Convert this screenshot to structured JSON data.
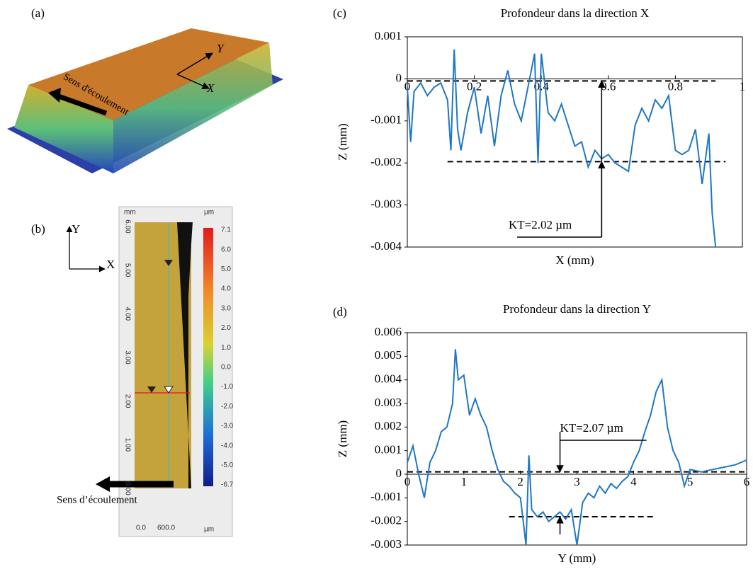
{
  "panel_labels": [
    "(a)",
    "(b)",
    "(c)",
    "(d)"
  ],
  "panel_a": {
    "axis_y": "Y",
    "axis_x": "X",
    "annotation": "Sens d'écoulement"
  },
  "panel_b": {
    "axis_y": "Y",
    "axis_x": "X",
    "unit_left": "mm",
    "unit_right": "µm",
    "unit_bottom": "µm",
    "y_ticks": [
      "6.00",
      "5.00",
      "4.00",
      "3.00",
      "2.00",
      "1.00",
      "0.00"
    ],
    "x_ticks": [
      "0.0",
      "600.0"
    ],
    "colorbar_ticks": [
      "7.1",
      "6.0",
      "5.0",
      "4.0",
      "3.0",
      "2.0",
      "1.0",
      "0.0",
      "-1.0",
      "-2.0",
      "-3.0",
      "-4.0",
      "-5.0",
      "-6.7"
    ],
    "annotation": "Sens d’écoulement"
  },
  "chart_data": [
    {
      "type": "line",
      "title": "Profondeur dans la direction X",
      "x_label": "X (mm)",
      "y_label": "Z (mm)",
      "color": "#1f77c4",
      "x": [
        0,
        0.01,
        0.02,
        0.04,
        0.06,
        0.08,
        0.1,
        0.12,
        0.13,
        0.14,
        0.15,
        0.16,
        0.18,
        0.2,
        0.22,
        0.24,
        0.26,
        0.28,
        0.3,
        0.32,
        0.34,
        0.36,
        0.38,
        0.39,
        0.4,
        0.42,
        0.44,
        0.46,
        0.48,
        0.5,
        0.52,
        0.54,
        0.56,
        0.58,
        0.6,
        0.62,
        0.64,
        0.66,
        0.68,
        0.7,
        0.72,
        0.74,
        0.76,
        0.78,
        0.8,
        0.82,
        0.84,
        0.86,
        0.88,
        0.9,
        0.91,
        0.92
      ],
      "values": [
        -0.0002,
        -0.0015,
        -0.0003,
        -0.0001,
        -0.0004,
        -0.0002,
        -0.0001,
        -0.0005,
        -0.0017,
        0.0007,
        -0.0012,
        -0.0017,
        -0.0008,
        -0.0002,
        -0.0013,
        -0.0004,
        -0.0016,
        -0.0004,
        0.0002,
        -0.0006,
        -0.001,
        -0.0002,
        0.0006,
        -0.002,
        0.0006,
        -0.0008,
        -0.001,
        -0.0006,
        -0.0011,
        -0.0016,
        -0.0015,
        -0.0021,
        -0.0017,
        -0.0019,
        -0.0018,
        -0.002,
        -0.0021,
        -0.0022,
        -0.0011,
        -0.0007,
        -0.001,
        -0.0005,
        -0.0007,
        -0.0004,
        -0.0017,
        -0.0018,
        -0.0017,
        -0.0012,
        -0.0025,
        -0.0013,
        -0.0032,
        -0.004
      ],
      "xlim": [
        0,
        1
      ],
      "ylim": [
        -0.004,
        0.001
      ],
      "xticks": [
        0,
        0.2,
        0.4,
        0.6,
        0.8,
        1
      ],
      "yticks": [
        0.001,
        0,
        -0.001,
        -0.002,
        -0.003,
        -0.004
      ],
      "reference_lines": [
        {
          "y": -5e-05,
          "x_from": 0,
          "x_to": 0.92
        },
        {
          "y": -0.00197,
          "x_from": 0.12,
          "x_to": 0.95
        }
      ],
      "kt_x": 0.58,
      "annotation": "KT=2.02 µm"
    },
    {
      "type": "line",
      "title": "Profondeur dans la direction Y",
      "x_label": "Y (mm)",
      "y_label": "Z (mm)",
      "color": "#1f77c4",
      "x": [
        0,
        0.1,
        0.2,
        0.3,
        0.4,
        0.5,
        0.6,
        0.7,
        0.8,
        0.85,
        0.9,
        1.0,
        1.1,
        1.2,
        1.3,
        1.4,
        1.5,
        1.6,
        1.7,
        1.8,
        1.9,
        2.0,
        2.1,
        2.15,
        2.2,
        2.3,
        2.4,
        2.5,
        2.6,
        2.7,
        2.8,
        2.9,
        3.0,
        3.1,
        3.2,
        3.3,
        3.4,
        3.5,
        3.6,
        3.7,
        3.8,
        3.9,
        4.0,
        4.1,
        4.2,
        4.3,
        4.4,
        4.5,
        4.6,
        4.7,
        4.8,
        4.9,
        5.0,
        5.2,
        5.4,
        5.6,
        5.8,
        6.0
      ],
      "values": [
        0.0005,
        0.0012,
        0.0,
        -0.001,
        0.0005,
        0.001,
        0.0018,
        0.002,
        0.003,
        0.0053,
        0.004,
        0.0042,
        0.0025,
        0.0032,
        0.0025,
        0.002,
        0.001,
        0.0002,
        -0.0003,
        -0.0005,
        -0.0008,
        -0.001,
        -0.003,
        0.0008,
        -0.0015,
        -0.0018,
        -0.0016,
        -0.002,
        -0.0018,
        -0.0016,
        -0.0019,
        -0.0015,
        -0.003,
        -0.0012,
        -0.0008,
        -0.001,
        -0.0005,
        -0.0008,
        -0.0004,
        -0.0006,
        -0.0003,
        -0.0001,
        0.0005,
        0.001,
        0.0018,
        0.0025,
        0.0035,
        0.004,
        0.002,
        0.001,
        0.0005,
        -0.0005,
        0.0002,
        0.0001,
        0.0002,
        0.0003,
        0.0004,
        0.0006
      ],
      "xlim": [
        0,
        6
      ],
      "ylim": [
        -0.003,
        0.006
      ],
      "xticks": [
        0,
        1,
        2,
        3,
        4,
        5,
        6
      ],
      "yticks": [
        0.006,
        0.005,
        0.004,
        0.003,
        0.002,
        0.001,
        0,
        -0.001,
        -0.002,
        -0.003
      ],
      "reference_lines": [
        {
          "y": 0.0001,
          "x_from": 0,
          "x_to": 6
        },
        {
          "y": -0.0018,
          "x_from": 1.8,
          "x_to": 4.4
        }
      ],
      "kt_x": 2.7,
      "annotation": "KT=2.07 µm"
    }
  ]
}
